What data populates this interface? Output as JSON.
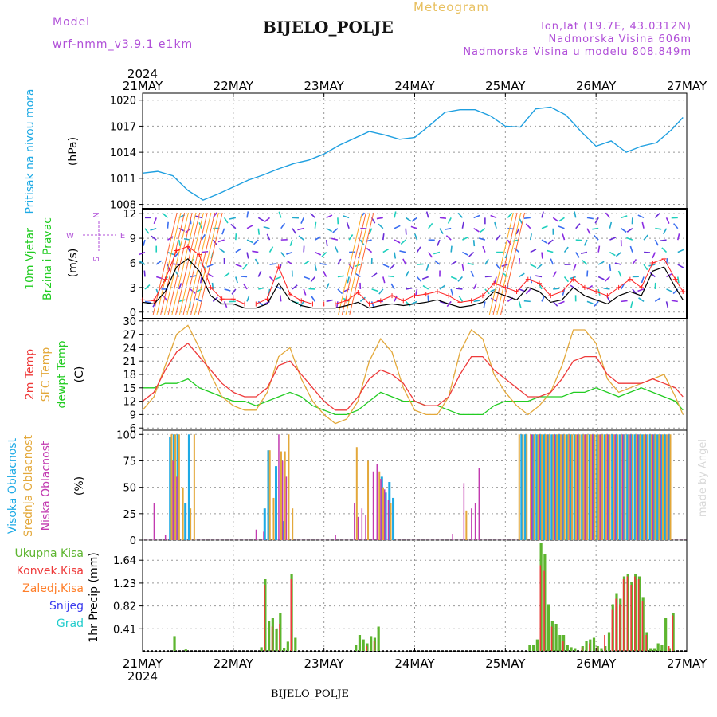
{
  "header": {
    "model_label": "Model",
    "model_name": "wrf-nmm_v3.9.1  e1km",
    "product": "Meteogram",
    "station": "BIJELO_POLJE",
    "lonlat": "lon,lat (19.7E, 43.0312N)",
    "elevation": "Nadmorska Visina 606m",
    "model_elevation": "Nadmorska Visina u modelu 808.849m"
  },
  "footer": {
    "station": "BIJELO_POLJE"
  },
  "watermark": "made by Angel",
  "time_axis": {
    "year": "2024",
    "days": [
      "21MAY",
      "22MAY",
      "23MAY",
      "24MAY",
      "25MAY",
      "26MAY",
      "27MAY"
    ],
    "hours": 144
  },
  "colors": {
    "pressure": "#1e9fe0",
    "temp2m": "#ee3a3a",
    "sfc": "#e3a83a",
    "dew": "#22cc22",
    "wind_speed": "#000000",
    "gust": "#ff2020",
    "total": "#5db52f",
    "conv": "#ee3a3a",
    "freeze": "#ff7f2a",
    "snow": "#3b3bee",
    "hail": "#22cccc",
    "high": "#1eaae5",
    "mid": "#e3a83a",
    "low": "#c23ab0"
  },
  "chart_data": [
    {
      "type": "line",
      "panel": "pressure",
      "ylabel": [
        "Pritisak na nivou mora",
        "(hPa)"
      ],
      "yticks": [
        1008,
        1011,
        1014,
        1017,
        1020
      ],
      "ylim": [
        1007.5,
        1020.8
      ],
      "x": [
        0,
        4,
        8,
        12,
        16,
        20,
        24,
        28,
        32,
        36,
        40,
        44,
        48,
        52,
        56,
        60,
        64,
        68,
        72,
        76,
        80,
        84,
        88,
        92,
        96,
        100,
        104,
        108,
        112,
        116,
        120,
        124,
        128,
        132,
        136,
        140,
        143
      ],
      "series": [
        {
          "values": [
            1011.6,
            1011.8,
            1011.3,
            1009.6,
            1008.5,
            1009.2,
            1010.0,
            1010.8,
            1011.4,
            1012.1,
            1012.7,
            1013.1,
            1013.8,
            1014.8,
            1015.6,
            1016.4,
            1016.0,
            1015.5,
            1015.7,
            1017.1,
            1018.6,
            1018.9,
            1018.9,
            1018.2,
            1017.0,
            1016.9,
            1019.0,
            1019.2,
            1018.3,
            1016.4,
            1014.7,
            1015.3,
            1014.0,
            1014.7,
            1015.1,
            1016.6,
            1018.0
          ]
        }
      ]
    },
    {
      "type": "line",
      "panel": "wind",
      "title": [
        "10m Vjetar",
        "Brzina i Pravac",
        "(m/s)"
      ],
      "compass": [
        "N",
        "S",
        "E",
        "W"
      ],
      "yticks": [
        0,
        3,
        6,
        9,
        12
      ],
      "ylim": [
        -0.8,
        12.6
      ],
      "x": [
        0,
        3,
        6,
        9,
        12,
        15,
        18,
        21,
        24,
        27,
        30,
        33,
        36,
        39,
        42,
        45,
        48,
        51,
        54,
        57,
        60,
        63,
        66,
        69,
        72,
        75,
        78,
        81,
        84,
        87,
        90,
        93,
        96,
        99,
        102,
        105,
        108,
        111,
        114,
        117,
        120,
        123,
        126,
        129,
        132,
        135,
        138,
        141,
        143
      ],
      "series": [
        {
          "name": "speed",
          "values": [
            1.2,
            1.0,
            2.5,
            5.5,
            6.5,
            5.0,
            2.0,
            1.0,
            1.0,
            0.5,
            0.5,
            1.0,
            3.5,
            1.5,
            0.8,
            0.5,
            0.5,
            0.5,
            0.8,
            1.2,
            0.5,
            0.8,
            1.0,
            0.8,
            1.0,
            1.2,
            1.5,
            1.0,
            0.6,
            0.8,
            1.2,
            2.5,
            2.0,
            1.5,
            3.0,
            2.5,
            1.2,
            1.5,
            3.0,
            2.0,
            1.5,
            1.0,
            2.0,
            2.5,
            2.0,
            5.0,
            5.5,
            3.0,
            1.5
          ]
        },
        {
          "name": "gust",
          "values": [
            1.5,
            1.4,
            4.0,
            7.5,
            8.0,
            7.0,
            3.0,
            1.6,
            1.6,
            1.0,
            1.0,
            1.6,
            5.5,
            2.2,
            1.4,
            1.0,
            1.0,
            1.0,
            1.4,
            2.4,
            1.0,
            1.4,
            2.0,
            1.4,
            2.0,
            2.2,
            2.5,
            2.0,
            1.2,
            1.4,
            2.0,
            3.5,
            3.0,
            2.5,
            4.0,
            3.5,
            2.0,
            2.5,
            4.0,
            3.0,
            2.5,
            2.0,
            3.0,
            4.0,
            3.0,
            6.0,
            6.5,
            4.0,
            2.5
          ]
        }
      ]
    },
    {
      "type": "line",
      "panel": "temperature",
      "ylabel": [
        "2m Temp",
        "SFC Temp",
        "dewpt Temp",
        "(C)"
      ],
      "yticks": [
        6,
        9,
        12,
        15,
        18,
        21,
        24,
        27,
        30
      ],
      "ylim": [
        5.5,
        30.5
      ],
      "x": [
        0,
        3,
        6,
        9,
        12,
        15,
        18,
        21,
        24,
        27,
        30,
        33,
        36,
        39,
        42,
        45,
        48,
        51,
        54,
        57,
        60,
        63,
        66,
        69,
        72,
        75,
        78,
        81,
        84,
        87,
        90,
        93,
        96,
        99,
        102,
        105,
        108,
        111,
        114,
        117,
        120,
        123,
        126,
        129,
        132,
        135,
        138,
        141,
        143
      ],
      "series": [
        {
          "name": "2m Temp",
          "values": [
            12,
            14,
            19,
            23,
            25,
            22,
            19,
            16,
            14,
            13,
            13,
            15,
            20,
            21,
            18,
            15,
            12,
            10,
            10,
            13,
            17,
            19,
            18,
            16,
            12,
            11,
            11,
            13,
            18,
            22,
            22,
            19,
            17,
            15,
            13,
            13,
            14,
            17,
            21,
            22,
            22,
            18,
            16,
            16,
            16,
            17,
            16,
            15,
            13
          ]
        },
        {
          "name": "SFC Temp",
          "values": [
            10,
            13,
            20,
            27,
            29,
            24,
            18,
            13,
            11,
            10,
            10,
            14,
            22,
            24,
            17,
            12,
            9,
            7,
            8,
            12,
            21,
            26,
            23,
            15,
            10,
            9,
            9,
            13,
            23,
            28,
            26,
            18,
            14,
            11,
            9,
            11,
            14,
            20,
            28,
            28,
            25,
            17,
            14,
            15,
            16,
            17,
            18,
            13,
            9
          ]
        },
        {
          "name": "dewpt Temp",
          "values": [
            15,
            15,
            16,
            16,
            17,
            15,
            14,
            13,
            12,
            12,
            11,
            12,
            13,
            14,
            13,
            11,
            10,
            9,
            9,
            10,
            12,
            14,
            13,
            12,
            12,
            11,
            11,
            10,
            9,
            9,
            9,
            11,
            12,
            12,
            12,
            13,
            13,
            13,
            14,
            14,
            15,
            14,
            13,
            14,
            15,
            14,
            13,
            12,
            10
          ]
        }
      ]
    },
    {
      "type": "bar",
      "panel": "clouds",
      "ylabel": [
        "Visoka Oblacnost",
        "Srednja Oblacnost",
        "Niska Oblacnost",
        "(%)"
      ],
      "yticks": [
        0,
        25,
        50,
        75,
        100
      ],
      "ylim": [
        0,
        104
      ],
      "baseline": 1,
      "series": [
        {
          "name": "Visoka Oblacnost",
          "x": [
            7,
            8,
            9,
            11,
            12,
            32,
            33,
            35,
            37,
            63,
            64,
            65,
            66,
            100,
            101,
            103,
            104,
            105,
            106,
            107,
            108,
            109,
            110,
            111,
            112,
            113,
            114,
            115,
            116,
            117,
            118,
            119,
            120,
            121,
            122,
            123,
            124,
            125,
            126,
            127,
            128,
            129,
            130,
            131,
            132,
            133,
            134,
            135,
            136,
            137,
            138,
            139
          ],
          "values": [
            98,
            100,
            100,
            35,
            100,
            30,
            85,
            70,
            18,
            60,
            45,
            55,
            40,
            100,
            100,
            100,
            100,
            100,
            100,
            100,
            100,
            100,
            100,
            100,
            100,
            100,
            100,
            100,
            100,
            100,
            100,
            100,
            100,
            100,
            100,
            100,
            100,
            100,
            100,
            100,
            100,
            100,
            100,
            100,
            100,
            100,
            100,
            100,
            100,
            100,
            100,
            100
          ]
        },
        {
          "name": "Srednja Oblacnost",
          "x": [
            7,
            8,
            9,
            10,
            12,
            13,
            33,
            34,
            36,
            37,
            38,
            39,
            56,
            59,
            62,
            63,
            65,
            85,
            99,
            100,
            101,
            102,
            103,
            104,
            105,
            106,
            107,
            108,
            109,
            110,
            111,
            112,
            113,
            114,
            115,
            116,
            117,
            118,
            119,
            120,
            121,
            122,
            123,
            124,
            125,
            126,
            127,
            128,
            129,
            130,
            131,
            132,
            133,
            134,
            135,
            136,
            137,
            138,
            139
          ],
          "values": [
            100,
            100,
            100,
            50,
            30,
            100,
            85,
            40,
            84,
            84,
            100,
            30,
            88,
            75,
            65,
            50,
            35,
            28,
            100,
            100,
            100,
            100,
            100,
            100,
            100,
            100,
            100,
            100,
            100,
            100,
            100,
            100,
            100,
            100,
            100,
            100,
            100,
            100,
            100,
            100,
            100,
            100,
            100,
            100,
            100,
            100,
            100,
            100,
            100,
            100,
            100,
            100,
            100,
            100,
            100,
            100,
            100,
            100,
            100
          ]
        },
        {
          "name": "Niska Oblacnost",
          "x": [
            2,
            5,
            7,
            8,
            29,
            31,
            35,
            36,
            37,
            50,
            55,
            56,
            57,
            58,
            60,
            61,
            62,
            63,
            64,
            81,
            84,
            86,
            87,
            88,
            102,
            104,
            106,
            108,
            110,
            112,
            114,
            116,
            118,
            120,
            122,
            124,
            126,
            128,
            130,
            132,
            134,
            136,
            138
          ],
          "values": [
            35,
            5,
            75,
            60,
            10,
            8,
            100,
            75,
            60,
            5,
            35,
            22,
            30,
            24,
            65,
            72,
            58,
            48,
            38,
            6,
            54,
            30,
            35,
            68,
            100,
            100,
            100,
            100,
            100,
            100,
            100,
            100,
            100,
            100,
            100,
            100,
            100,
            100,
            100,
            100,
            100,
            100,
            100
          ]
        }
      ]
    },
    {
      "type": "bar",
      "panel": "precipitation",
      "ylabel": "1hr Precip (mm)",
      "legend": [
        "Ukupna Kisa",
        "Konvek.Kisa",
        "Zaledj.Kisa",
        "Snijeg",
        "Grad"
      ],
      "yticks": [
        0.41,
        0.82,
        1.23,
        1.64
      ],
      "ylim": [
        0,
        2.0
      ],
      "series": [
        {
          "name": "Ukupna Kisa",
          "x": [
            8,
            11,
            31,
            32,
            33,
            34,
            35,
            36,
            37,
            38,
            39,
            40,
            56,
            57,
            58,
            59,
            60,
            61,
            62,
            102,
            103,
            104,
            105,
            106,
            107,
            108,
            109,
            110,
            111,
            112,
            113,
            114,
            116,
            117,
            118,
            119,
            120,
            121,
            122,
            123,
            124,
            125,
            126,
            127,
            128,
            129,
            130,
            131,
            132,
            133,
            134,
            135,
            136,
            137,
            138,
            139,
            140
          ],
          "values": [
            0.28,
            0.04,
            0.08,
            1.3,
            0.55,
            0.6,
            0.4,
            0.7,
            0.06,
            0.18,
            1.4,
            0.25,
            0.12,
            0.3,
            0.22,
            0.15,
            0.28,
            0.25,
            0.45,
            0.12,
            0.12,
            0.22,
            1.95,
            1.75,
            0.85,
            0.55,
            0.5,
            0.3,
            0.3,
            0.12,
            0.08,
            0.05,
            0.1,
            0.2,
            0.22,
            0.25,
            0.1,
            0.05,
            0.1,
            0.35,
            0.85,
            1.05,
            0.95,
            1.35,
            1.4,
            1.25,
            1.4,
            1.35,
            0.98,
            0.35,
            0.05,
            0.05,
            0.15,
            0.12,
            0.6,
            0.05,
            0.7
          ]
        },
        {
          "name": "Konvek.Kisa",
          "x": [
            32,
            34,
            36,
            39,
            59,
            61,
            105,
            106,
            108,
            111,
            116,
            118,
            120,
            122,
            124,
            125,
            126,
            127,
            128,
            129,
            130,
            131,
            132,
            133,
            139,
            140
          ],
          "values": [
            1.2,
            0.45,
            0.5,
            1.3,
            0.1,
            0.2,
            1.55,
            1.45,
            0.45,
            0.2,
            0.08,
            0.15,
            0.08,
            0.3,
            0.75,
            0.95,
            0.85,
            1.3,
            1.35,
            1.2,
            1.35,
            1.3,
            0.9,
            0.3,
            0.1,
            0.65
          ]
        }
      ]
    }
  ]
}
